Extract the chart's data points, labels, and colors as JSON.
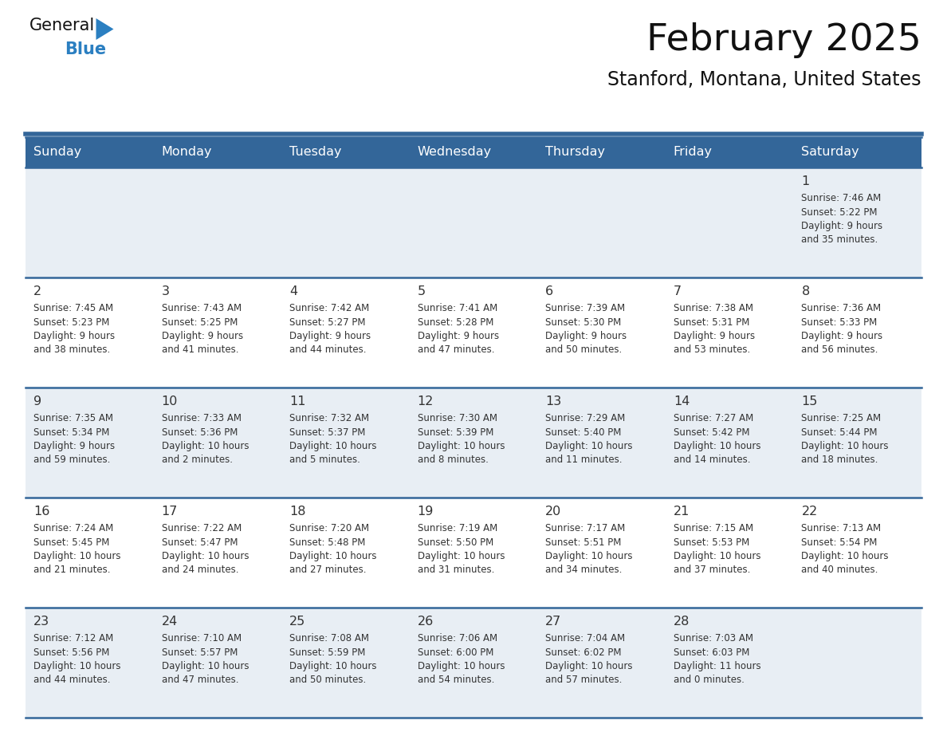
{
  "title": "February 2025",
  "subtitle": "Stanford, Montana, United States",
  "header_bg": "#336699",
  "header_text_color": "#ffffff",
  "cell_bg_light": "#e8eef4",
  "cell_bg_white": "#ffffff",
  "border_color": "#336699",
  "day_number_color": "#333333",
  "info_text_color": "#333333",
  "days_of_week": [
    "Sunday",
    "Monday",
    "Tuesday",
    "Wednesday",
    "Thursday",
    "Friday",
    "Saturday"
  ],
  "calendar_data": [
    [
      null,
      null,
      null,
      null,
      null,
      null,
      {
        "day": "1",
        "sunrise": "7:46 AM",
        "sunset": "5:22 PM",
        "daylight": "9 hours\nand 35 minutes."
      }
    ],
    [
      {
        "day": "2",
        "sunrise": "7:45 AM",
        "sunset": "5:23 PM",
        "daylight": "9 hours\nand 38 minutes."
      },
      {
        "day": "3",
        "sunrise": "7:43 AM",
        "sunset": "5:25 PM",
        "daylight": "9 hours\nand 41 minutes."
      },
      {
        "day": "4",
        "sunrise": "7:42 AM",
        "sunset": "5:27 PM",
        "daylight": "9 hours\nand 44 minutes."
      },
      {
        "day": "5",
        "sunrise": "7:41 AM",
        "sunset": "5:28 PM",
        "daylight": "9 hours\nand 47 minutes."
      },
      {
        "day": "6",
        "sunrise": "7:39 AM",
        "sunset": "5:30 PM",
        "daylight": "9 hours\nand 50 minutes."
      },
      {
        "day": "7",
        "sunrise": "7:38 AM",
        "sunset": "5:31 PM",
        "daylight": "9 hours\nand 53 minutes."
      },
      {
        "day": "8",
        "sunrise": "7:36 AM",
        "sunset": "5:33 PM",
        "daylight": "9 hours\nand 56 minutes."
      }
    ],
    [
      {
        "day": "9",
        "sunrise": "7:35 AM",
        "sunset": "5:34 PM",
        "daylight": "9 hours\nand 59 minutes."
      },
      {
        "day": "10",
        "sunrise": "7:33 AM",
        "sunset": "5:36 PM",
        "daylight": "10 hours\nand 2 minutes."
      },
      {
        "day": "11",
        "sunrise": "7:32 AM",
        "sunset": "5:37 PM",
        "daylight": "10 hours\nand 5 minutes."
      },
      {
        "day": "12",
        "sunrise": "7:30 AM",
        "sunset": "5:39 PM",
        "daylight": "10 hours\nand 8 minutes."
      },
      {
        "day": "13",
        "sunrise": "7:29 AM",
        "sunset": "5:40 PM",
        "daylight": "10 hours\nand 11 minutes."
      },
      {
        "day": "14",
        "sunrise": "7:27 AM",
        "sunset": "5:42 PM",
        "daylight": "10 hours\nand 14 minutes."
      },
      {
        "day": "15",
        "sunrise": "7:25 AM",
        "sunset": "5:44 PM",
        "daylight": "10 hours\nand 18 minutes."
      }
    ],
    [
      {
        "day": "16",
        "sunrise": "7:24 AM",
        "sunset": "5:45 PM",
        "daylight": "10 hours\nand 21 minutes."
      },
      {
        "day": "17",
        "sunrise": "7:22 AM",
        "sunset": "5:47 PM",
        "daylight": "10 hours\nand 24 minutes."
      },
      {
        "day": "18",
        "sunrise": "7:20 AM",
        "sunset": "5:48 PM",
        "daylight": "10 hours\nand 27 minutes."
      },
      {
        "day": "19",
        "sunrise": "7:19 AM",
        "sunset": "5:50 PM",
        "daylight": "10 hours\nand 31 minutes."
      },
      {
        "day": "20",
        "sunrise": "7:17 AM",
        "sunset": "5:51 PM",
        "daylight": "10 hours\nand 34 minutes."
      },
      {
        "day": "21",
        "sunrise": "7:15 AM",
        "sunset": "5:53 PM",
        "daylight": "10 hours\nand 37 minutes."
      },
      {
        "day": "22",
        "sunrise": "7:13 AM",
        "sunset": "5:54 PM",
        "daylight": "10 hours\nand 40 minutes."
      }
    ],
    [
      {
        "day": "23",
        "sunrise": "7:12 AM",
        "sunset": "5:56 PM",
        "daylight": "10 hours\nand 44 minutes."
      },
      {
        "day": "24",
        "sunrise": "7:10 AM",
        "sunset": "5:57 PM",
        "daylight": "10 hours\nand 47 minutes."
      },
      {
        "day": "25",
        "sunrise": "7:08 AM",
        "sunset": "5:59 PM",
        "daylight": "10 hours\nand 50 minutes."
      },
      {
        "day": "26",
        "sunrise": "7:06 AM",
        "sunset": "6:00 PM",
        "daylight": "10 hours\nand 54 minutes."
      },
      {
        "day": "27",
        "sunrise": "7:04 AM",
        "sunset": "6:02 PM",
        "daylight": "10 hours\nand 57 minutes."
      },
      {
        "day": "28",
        "sunrise": "7:03 AM",
        "sunset": "6:03 PM",
        "daylight": "11 hours\nand 0 minutes."
      },
      null
    ]
  ],
  "logo_color_general": "#111111",
  "logo_color_blue": "#2b7fc1",
  "logo_triangle_color": "#2b7fc1",
  "title_color": "#111111",
  "subtitle_color": "#111111"
}
